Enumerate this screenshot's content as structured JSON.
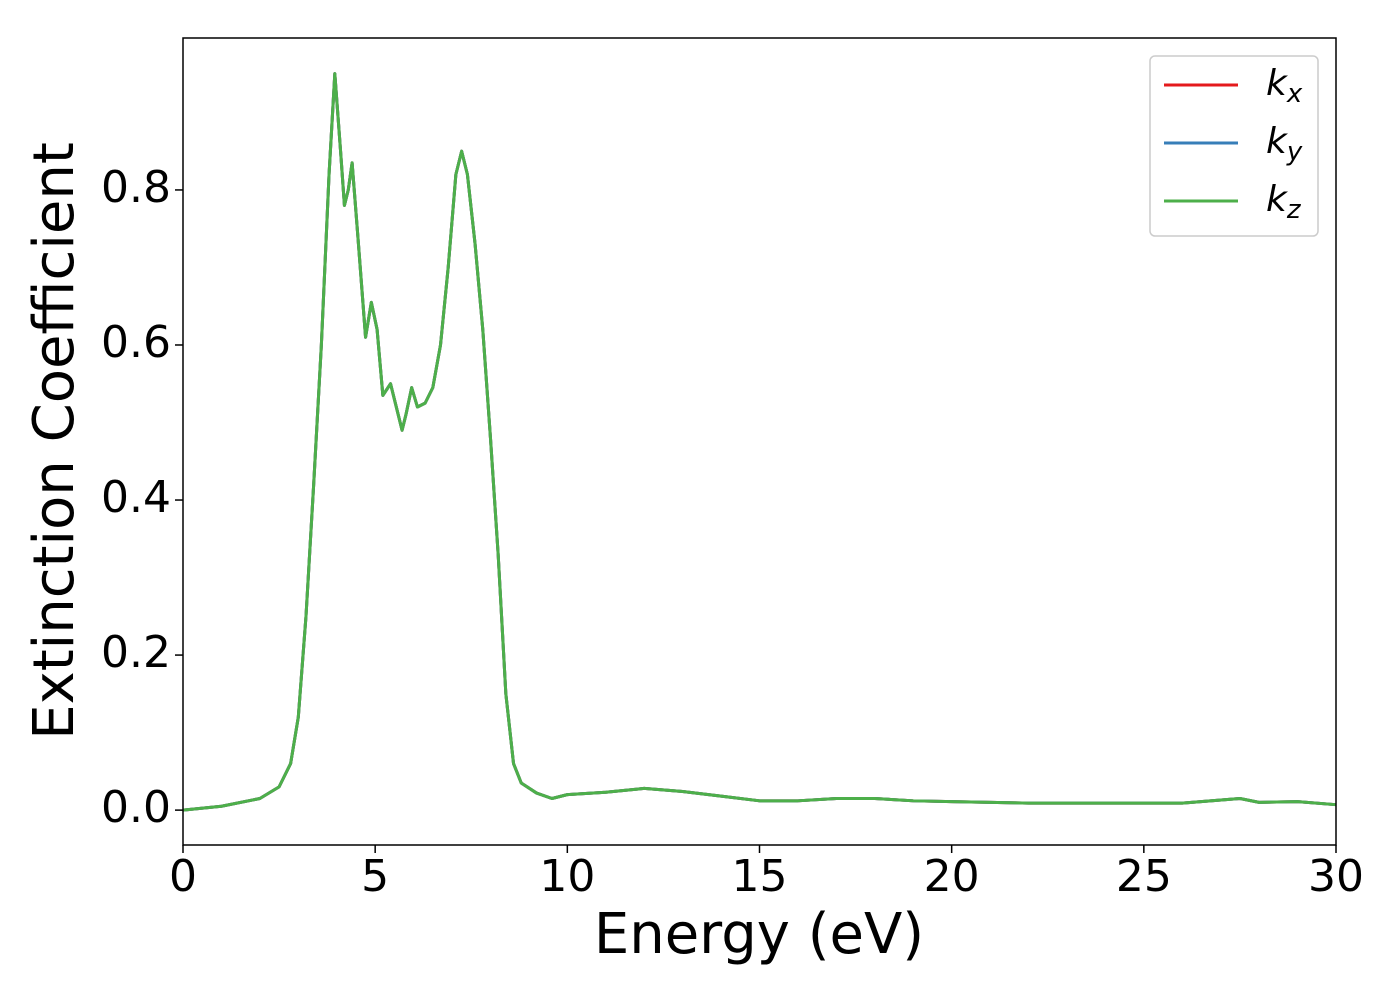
{
  "chart_data": {
    "type": "line",
    "xlabel": "Energy (eV)",
    "ylabel": "Extinction Coefficient",
    "x": [
      0,
      1,
      2,
      2.5,
      2.8,
      3.0,
      3.2,
      3.4,
      3.6,
      3.8,
      3.95,
      4.1,
      4.2,
      4.3,
      4.4,
      4.55,
      4.75,
      4.9,
      5.05,
      5.2,
      5.4,
      5.55,
      5.7,
      5.8,
      5.95,
      6.1,
      6.3,
      6.5,
      6.7,
      6.9,
      7.1,
      7.25,
      7.4,
      7.6,
      7.8,
      8.0,
      8.2,
      8.4,
      8.6,
      8.8,
      9.2,
      9.6,
      10,
      11,
      12,
      13,
      14,
      15,
      16,
      17,
      18,
      19,
      20,
      22,
      24,
      26,
      27.5,
      28,
      29,
      30
    ],
    "series": [
      {
        "name": "kx",
        "color": "#e41a1c",
        "values": [
          0,
          0.005,
          0.015,
          0.03,
          0.06,
          0.12,
          0.25,
          0.42,
          0.6,
          0.82,
          0.95,
          0.85,
          0.78,
          0.8,
          0.835,
          0.74,
          0.61,
          0.655,
          0.62,
          0.535,
          0.55,
          0.52,
          0.49,
          0.51,
          0.545,
          0.52,
          0.525,
          0.545,
          0.6,
          0.7,
          0.82,
          0.85,
          0.82,
          0.73,
          0.62,
          0.48,
          0.33,
          0.15,
          0.06,
          0.035,
          0.022,
          0.015,
          0.02,
          0.023,
          0.028,
          0.024,
          0.018,
          0.012,
          0.012,
          0.015,
          0.015,
          0.012,
          0.011,
          0.009,
          0.009,
          0.009,
          0.015,
          0.01,
          0.011,
          0.007
        ]
      },
      {
        "name": "ky",
        "color": "#377eb8",
        "values": [
          0,
          0.005,
          0.015,
          0.03,
          0.06,
          0.12,
          0.25,
          0.42,
          0.6,
          0.82,
          0.95,
          0.85,
          0.78,
          0.8,
          0.835,
          0.74,
          0.61,
          0.655,
          0.62,
          0.535,
          0.55,
          0.52,
          0.49,
          0.51,
          0.545,
          0.52,
          0.525,
          0.545,
          0.6,
          0.7,
          0.82,
          0.85,
          0.82,
          0.73,
          0.62,
          0.48,
          0.33,
          0.15,
          0.06,
          0.035,
          0.022,
          0.015,
          0.02,
          0.023,
          0.028,
          0.024,
          0.018,
          0.012,
          0.012,
          0.015,
          0.015,
          0.012,
          0.011,
          0.009,
          0.009,
          0.009,
          0.015,
          0.01,
          0.011,
          0.007
        ]
      },
      {
        "name": "kz",
        "color": "#4daf4a",
        "values": [
          0,
          0.005,
          0.015,
          0.03,
          0.06,
          0.12,
          0.25,
          0.42,
          0.6,
          0.82,
          0.95,
          0.85,
          0.78,
          0.8,
          0.835,
          0.74,
          0.61,
          0.655,
          0.62,
          0.535,
          0.55,
          0.52,
          0.49,
          0.51,
          0.545,
          0.52,
          0.525,
          0.545,
          0.6,
          0.7,
          0.82,
          0.85,
          0.82,
          0.73,
          0.62,
          0.48,
          0.33,
          0.15,
          0.06,
          0.035,
          0.022,
          0.015,
          0.02,
          0.023,
          0.028,
          0.024,
          0.018,
          0.012,
          0.012,
          0.015,
          0.015,
          0.012,
          0.011,
          0.009,
          0.009,
          0.009,
          0.015,
          0.01,
          0.011,
          0.007
        ]
      }
    ],
    "xlim": [
      0,
      30
    ],
    "xticks": [
      0,
      5,
      10,
      15,
      20,
      25,
      30
    ],
    "ylim": [
      -0.045,
      0.996
    ],
    "yticks": [
      {
        "value": 0,
        "label": "0.0"
      },
      {
        "value": 0.2,
        "label": "0.2"
      },
      {
        "value": 0.4,
        "label": "0.4"
      },
      {
        "value": 0.6,
        "label": "0.6"
      },
      {
        "value": 0.8,
        "label": "0.8"
      }
    ],
    "grid": false,
    "legend": "upper right"
  }
}
